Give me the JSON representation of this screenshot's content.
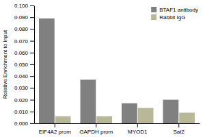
{
  "chart_data": {
    "type": "bar",
    "ylabel": "Relative Enrichment to Input",
    "categories": [
      "EIF4A2 prom",
      "GAPDH prom",
      "MYOD1",
      "Sat2"
    ],
    "series": [
      {
        "name": "BTAF1 antibody",
        "color": "#808080",
        "values": [
          0.089,
          0.037,
          0.017,
          0.02
        ]
      },
      {
        "name": "Rabbit IgG",
        "color": "#b8b898",
        "values": [
          0.006,
          0.006,
          0.013,
          0.009
        ]
      }
    ],
    "ylim": [
      0,
      0.1
    ],
    "yticks": [
      {
        "value": 0.0,
        "label": "0.000"
      },
      {
        "value": 0.01,
        "label": "0.010"
      },
      {
        "value": 0.02,
        "label": "0.020"
      },
      {
        "value": 0.03,
        "label": "0.030"
      },
      {
        "value": 0.04,
        "label": "0.040"
      },
      {
        "value": 0.05,
        "label": "0.050"
      },
      {
        "value": 0.06,
        "label": "0.060"
      },
      {
        "value": 0.07,
        "label": "0.070"
      },
      {
        "value": 0.08,
        "label": "0.080"
      },
      {
        "value": 0.09,
        "label": "0.090"
      },
      {
        "value": 0.1,
        "label": "0.100"
      }
    ],
    "grid": false,
    "legend": "upper right"
  }
}
